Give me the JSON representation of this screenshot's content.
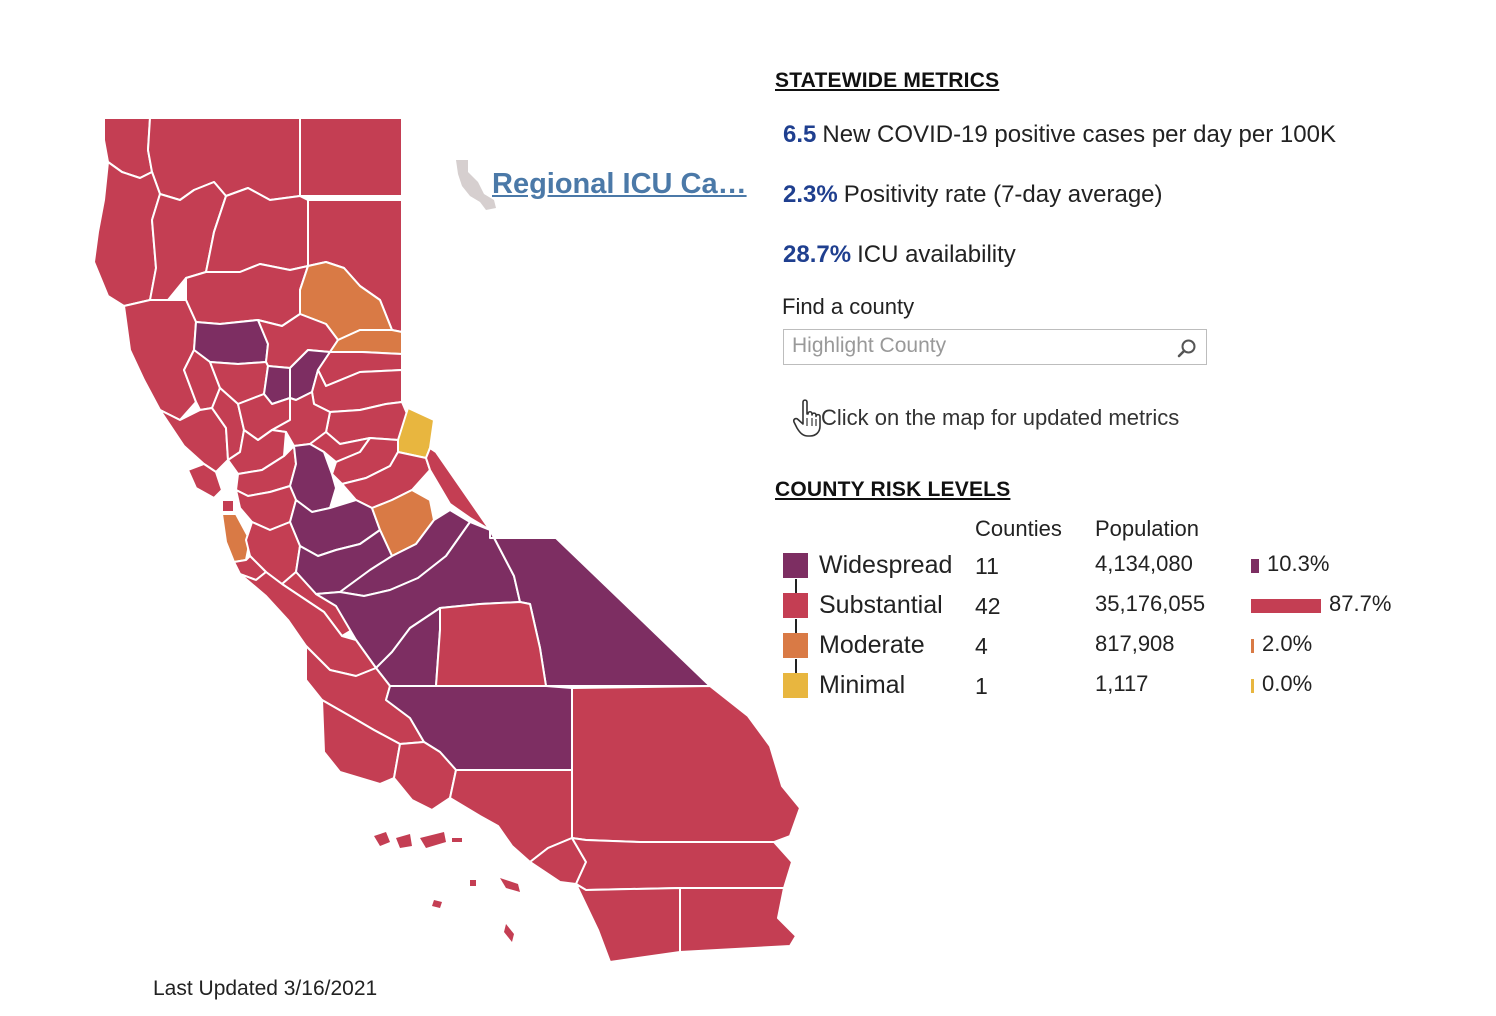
{
  "colors": {
    "widespread": "#7d2e62",
    "substantial": "#c43e53",
    "moderate": "#d97a45",
    "minimal": "#e8b63f",
    "link": "#4b79a8",
    "metric_value": "#1f3f8f"
  },
  "icu_link": {
    "text": "Regional ICU Ca…",
    "icon": "california-outline-icon"
  },
  "statewide": {
    "title": "STATEWIDE METRICS",
    "metrics": [
      {
        "value": "6.5",
        "label": "New COVID-19 positive cases per day per 100K"
      },
      {
        "value": "2.3%",
        "label": "Positivity rate (7-day average)"
      },
      {
        "value": "28.7%",
        "label": "ICU availability"
      }
    ]
  },
  "find_county": {
    "label": "Find a county",
    "placeholder": "Highlight County",
    "value": ""
  },
  "hint": {
    "text": "Click on the map for updated metrics",
    "icon": "pointer-hand-icon"
  },
  "risk_levels": {
    "title": "COUNTY RISK LEVELS",
    "col_counties": "Counties",
    "col_population": "Population",
    "rows": [
      {
        "key": "widespread",
        "label": "Widespread",
        "counties": "11",
        "population": "4,134,080",
        "pct": "10.3%",
        "share": 10.3
      },
      {
        "key": "substantial",
        "label": "Substantial",
        "counties": "42",
        "population": "35,176,055",
        "pct": "87.7%",
        "share": 87.7
      },
      {
        "key": "moderate",
        "label": "Moderate",
        "counties": "4",
        "population": "817,908",
        "pct": "2.0%",
        "share": 2.0
      },
      {
        "key": "minimal",
        "label": "Minimal",
        "counties": "1",
        "population": "1,117",
        "pct": "0.0%",
        "share": 0.0
      }
    ]
  },
  "map": {
    "counties": [
      {
        "id": "del-norte",
        "level": "substantial"
      },
      {
        "id": "siskiyou",
        "level": "substantial"
      },
      {
        "id": "modoc",
        "level": "substantial"
      },
      {
        "id": "humboldt",
        "level": "substantial"
      },
      {
        "id": "trinity",
        "level": "substantial"
      },
      {
        "id": "shasta",
        "level": "substantial"
      },
      {
        "id": "lassen",
        "level": "substantial"
      },
      {
        "id": "tehama",
        "level": "substantial"
      },
      {
        "id": "plumas",
        "level": "moderate"
      },
      {
        "id": "mendocino",
        "level": "substantial"
      },
      {
        "id": "glenn",
        "level": "widespread"
      },
      {
        "id": "butte",
        "level": "substantial"
      },
      {
        "id": "sierra",
        "level": "moderate"
      },
      {
        "id": "lake",
        "level": "substantial"
      },
      {
        "id": "colusa",
        "level": "substantial"
      },
      {
        "id": "sutter",
        "level": "widespread"
      },
      {
        "id": "yuba",
        "level": "widespread"
      },
      {
        "id": "nevada",
        "level": "substantial"
      },
      {
        "id": "placer",
        "level": "substantial"
      },
      {
        "id": "el-dorado",
        "level": "substantial"
      },
      {
        "id": "alpine",
        "level": "minimal"
      },
      {
        "id": "sonoma",
        "level": "substantial"
      },
      {
        "id": "napa",
        "level": "substantial"
      },
      {
        "id": "yolo",
        "level": "substantial"
      },
      {
        "id": "sacramento",
        "level": "substantial"
      },
      {
        "id": "amador",
        "level": "substantial"
      },
      {
        "id": "calaveras",
        "level": "substantial"
      },
      {
        "id": "tuolumne",
        "level": "substantial"
      },
      {
        "id": "mono",
        "level": "substantial"
      },
      {
        "id": "marin",
        "level": "substantial"
      },
      {
        "id": "solano",
        "level": "substantial"
      },
      {
        "id": "contra-costa",
        "level": "substantial"
      },
      {
        "id": "san-joaquin",
        "level": "widespread"
      },
      {
        "id": "san-francisco",
        "level": "substantial"
      },
      {
        "id": "san-mateo",
        "level": "moderate"
      },
      {
        "id": "alameda",
        "level": "substantial"
      },
      {
        "id": "stanislaus",
        "level": "widespread"
      },
      {
        "id": "mariposa",
        "level": "moderate"
      },
      {
        "id": "santa-clara",
        "level": "substantial"
      },
      {
        "id": "santa-cruz",
        "level": "substantial"
      },
      {
        "id": "merced",
        "level": "widespread"
      },
      {
        "id": "madera",
        "level": "widespread"
      },
      {
        "id": "san-benito",
        "level": "substantial"
      },
      {
        "id": "fresno",
        "level": "widespread"
      },
      {
        "id": "inyo",
        "level": "widespread"
      },
      {
        "id": "monterey",
        "level": "substantial"
      },
      {
        "id": "kings",
        "level": "widespread"
      },
      {
        "id": "tulare",
        "level": "substantial"
      },
      {
        "id": "san-luis-obispo",
        "level": "substantial"
      },
      {
        "id": "kern",
        "level": "widespread"
      },
      {
        "id": "san-bernardino",
        "level": "substantial"
      },
      {
        "id": "santa-barbara",
        "level": "substantial"
      },
      {
        "id": "ventura",
        "level": "substantial"
      },
      {
        "id": "los-angeles",
        "level": "substantial"
      },
      {
        "id": "orange",
        "level": "substantial"
      },
      {
        "id": "riverside",
        "level": "substantial"
      },
      {
        "id": "san-diego",
        "level": "substantial"
      },
      {
        "id": "imperial",
        "level": "substantial"
      }
    ]
  },
  "footer": {
    "last_updated": "Last Updated 3/16/2021"
  }
}
